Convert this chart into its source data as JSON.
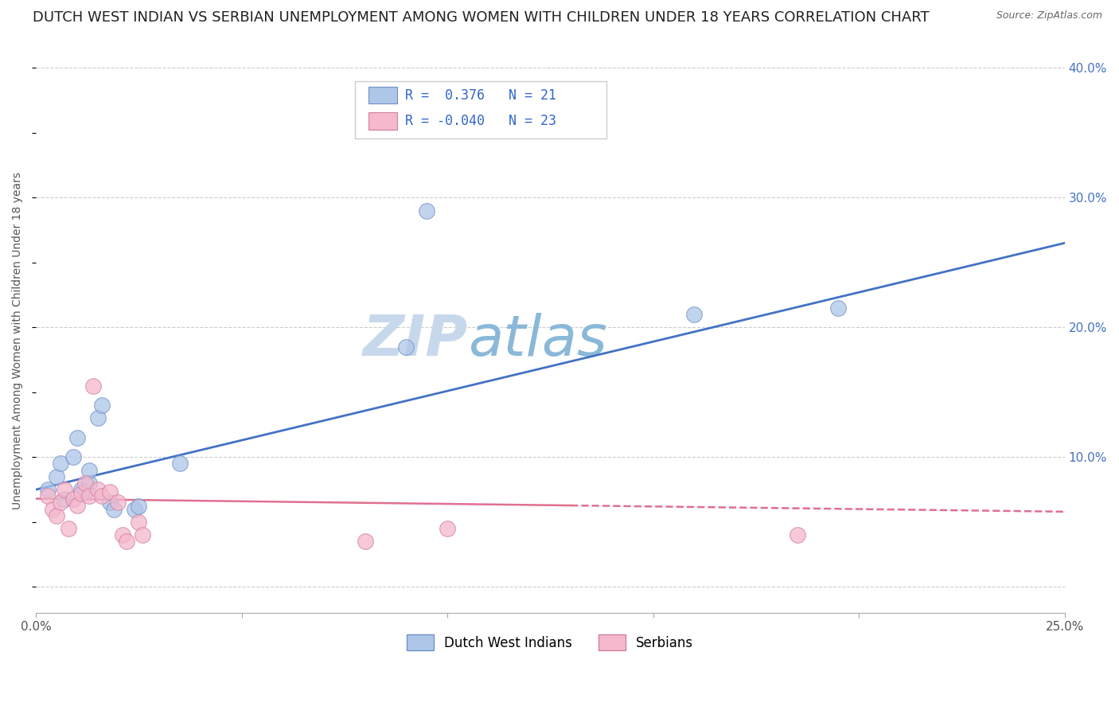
{
  "title": "DUTCH WEST INDIAN VS SERBIAN UNEMPLOYMENT AMONG WOMEN WITH CHILDREN UNDER 18 YEARS CORRELATION CHART",
  "source": "Source: ZipAtlas.com",
  "ylabel": "Unemployment Among Women with Children Under 18 years",
  "watermark_zip": "ZIP",
  "watermark_atlas": "atlas",
  "xlim": [
    0.0,
    0.25
  ],
  "ylim": [
    -0.02,
    0.4
  ],
  "xticks": [
    0.0,
    0.05,
    0.1,
    0.15,
    0.2,
    0.25
  ],
  "yticks": [
    0.0,
    0.1,
    0.2,
    0.3,
    0.4
  ],
  "xtick_labels": [
    "0.0%",
    "",
    "",
    "",
    "",
    "25.0%"
  ],
  "ytick_labels_right": [
    "",
    "10.0%",
    "20.0%",
    "30.0%",
    "40.0%"
  ],
  "dutch_west_indian_points": [
    [
      0.003,
      0.075
    ],
    [
      0.005,
      0.085
    ],
    [
      0.006,
      0.095
    ],
    [
      0.007,
      0.068
    ],
    [
      0.009,
      0.1
    ],
    [
      0.01,
      0.115
    ],
    [
      0.011,
      0.075
    ],
    [
      0.012,
      0.073
    ],
    [
      0.013,
      0.08
    ],
    [
      0.013,
      0.09
    ],
    [
      0.015,
      0.13
    ],
    [
      0.016,
      0.14
    ],
    [
      0.018,
      0.065
    ],
    [
      0.019,
      0.06
    ],
    [
      0.024,
      0.06
    ],
    [
      0.025,
      0.062
    ],
    [
      0.035,
      0.095
    ],
    [
      0.09,
      0.185
    ],
    [
      0.095,
      0.29
    ],
    [
      0.16,
      0.21
    ],
    [
      0.195,
      0.215
    ]
  ],
  "serbian_points": [
    [
      0.003,
      0.07
    ],
    [
      0.004,
      0.06
    ],
    [
      0.005,
      0.055
    ],
    [
      0.006,
      0.065
    ],
    [
      0.007,
      0.075
    ],
    [
      0.008,
      0.045
    ],
    [
      0.009,
      0.068
    ],
    [
      0.01,
      0.063
    ],
    [
      0.011,
      0.072
    ],
    [
      0.012,
      0.08
    ],
    [
      0.013,
      0.07
    ],
    [
      0.014,
      0.155
    ],
    [
      0.015,
      0.075
    ],
    [
      0.016,
      0.07
    ],
    [
      0.018,
      0.073
    ],
    [
      0.02,
      0.065
    ],
    [
      0.021,
      0.04
    ],
    [
      0.022,
      0.035
    ],
    [
      0.025,
      0.05
    ],
    [
      0.026,
      0.04
    ],
    [
      0.08,
      0.035
    ],
    [
      0.1,
      0.045
    ],
    [
      0.185,
      0.04
    ]
  ],
  "blue_line": {
    "x0": 0.0,
    "y0": 0.075,
    "x1": 0.25,
    "y1": 0.265
  },
  "pink_line": {
    "x0": 0.0,
    "y0": 0.068,
    "x1": 0.25,
    "y1": 0.058
  },
  "blue_line_color": "#4472c4",
  "pink_line_color": "#e07090",
  "blue_scatter_color": "#aec6e8",
  "pink_scatter_color": "#f5b8cc",
  "blue_edge_color": "#7090c8",
  "pink_edge_color": "#d080a0",
  "background_color": "#ffffff",
  "grid_color": "#cccccc",
  "title_fontsize": 13,
  "axis_label_fontsize": 10,
  "tick_fontsize": 11,
  "watermark_fontsize_zip": 52,
  "watermark_fontsize_atlas": 52,
  "watermark_color_zip": "#c8d8ec",
  "watermark_color_atlas": "#8ab8d8",
  "legend_fontsize": 12,
  "R_blue": 0.376,
  "N_blue": 21,
  "R_pink": -0.04,
  "N_pink": 23
}
